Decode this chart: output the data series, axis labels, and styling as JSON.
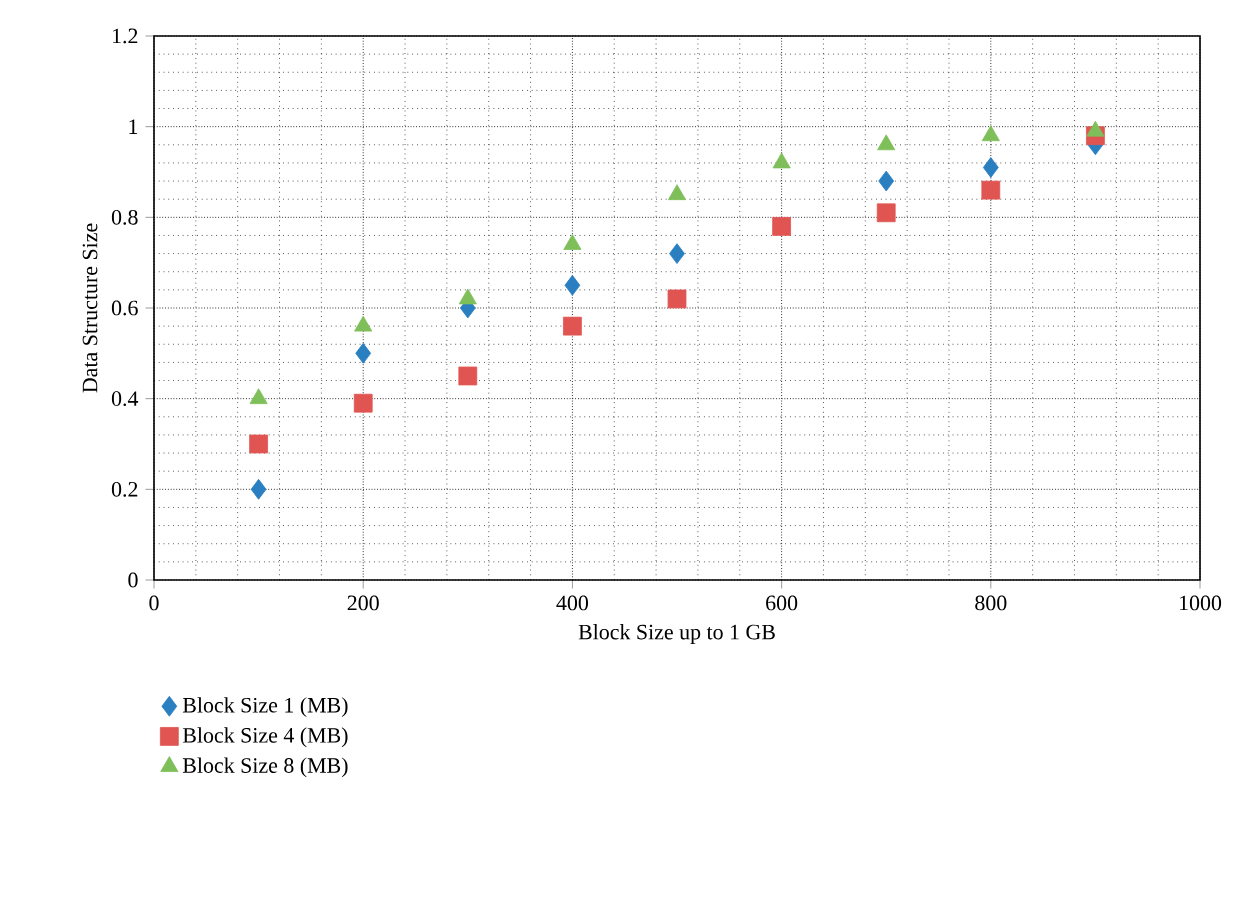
{
  "chart_data": {
    "type": "scatter",
    "xlabel": "Block Size up to 1 GB",
    "ylabel": "Data Structure Size",
    "x": [
      100,
      200,
      300,
      400,
      500,
      600,
      700,
      800,
      900
    ],
    "series": [
      {
        "name": "Block Size 1 (MB)",
        "color": "#2a7fc1",
        "marker": "diamond",
        "values": [
          0.2,
          0.5,
          0.6,
          0.65,
          0.72,
          null,
          0.88,
          0.91,
          0.96
        ]
      },
      {
        "name": "Block Size 4 (MB)",
        "color": "#e05552",
        "marker": "square",
        "values": [
          0.3,
          0.39,
          0.45,
          0.56,
          0.62,
          0.78,
          0.81,
          0.86,
          0.98
        ]
      },
      {
        "name": "Block Size 8 (MB)",
        "color": "#7fbf5a",
        "marker": "triangle",
        "values": [
          0.4,
          0.56,
          0.62,
          0.74,
          0.85,
          0.92,
          0.96,
          0.98,
          0.99
        ]
      }
    ],
    "xlim": [
      0,
      1000
    ],
    "xticks": [
      0,
      200,
      400,
      600,
      800,
      1000
    ],
    "ylim": [
      0,
      1.2
    ],
    "yticks": [
      0,
      0.2,
      0.4,
      0.6,
      0.8,
      1,
      1.2
    ],
    "grid": true,
    "legend": "bottom"
  }
}
